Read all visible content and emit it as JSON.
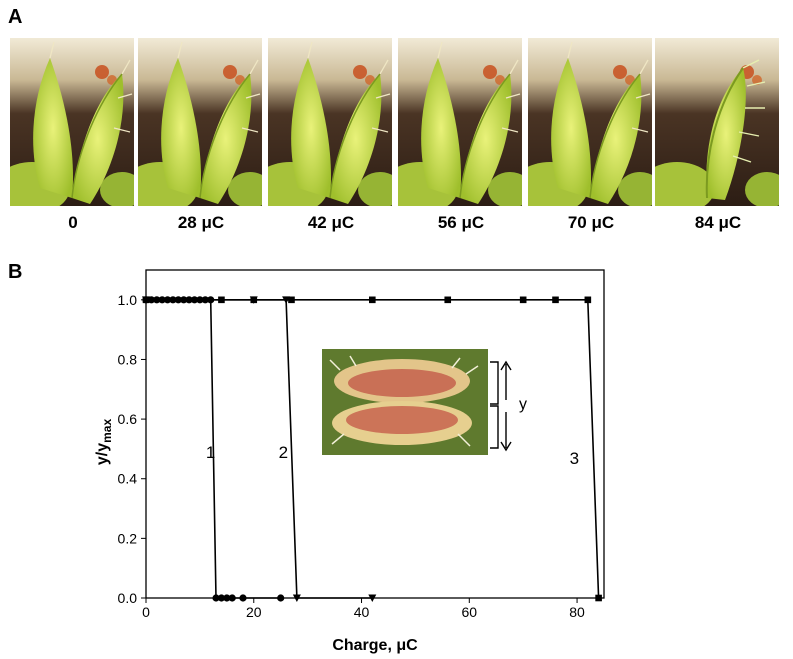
{
  "panel_labels": {
    "a": "A",
    "b": "B"
  },
  "photo_strip": {
    "labels": [
      "0",
      "28 μC",
      "42 μC",
      "56 μC",
      "70 μC",
      "84 μC"
    ]
  },
  "inset": {
    "label": "y"
  },
  "chart_data": {
    "type": "line",
    "xlabel": "Charge, μC",
    "ylabel": "y/y",
    "ylabel_subscript": "max",
    "xlim": [
      0,
      85
    ],
    "ylim": [
      0,
      1.1
    ],
    "xticks": [
      0,
      20,
      40,
      60,
      80
    ],
    "yticks": [
      0.0,
      0.2,
      0.4,
      0.6,
      0.8,
      1.0
    ],
    "xtick_labels": [
      "0",
      "20",
      "40",
      "60",
      "80"
    ],
    "ytick_labels": [
      "0.0",
      "0.2",
      "0.4",
      "0.6",
      "0.8",
      "1.0"
    ],
    "grid": false,
    "annotations": [
      "1",
      "2",
      "3"
    ],
    "series": [
      {
        "marker": "circle",
        "x": [
          0,
          1,
          2,
          3,
          4,
          5,
          6,
          7,
          8,
          9,
          10,
          11,
          12,
          13,
          14,
          15,
          16,
          18,
          25
        ],
        "y": [
          1,
          1,
          1,
          1,
          1,
          1,
          1,
          1,
          1,
          1,
          1,
          1,
          1,
          0,
          0,
          0,
          0,
          0,
          0
        ]
      },
      {
        "marker": "triangle-down",
        "x": [
          0,
          20,
          26,
          28,
          42
        ],
        "y": [
          1,
          1,
          1,
          0,
          0
        ]
      },
      {
        "marker": "square",
        "x": [
          0,
          14,
          20,
          27,
          42,
          56,
          70,
          76,
          82,
          84
        ],
        "y": [
          1,
          1,
          1,
          1,
          1,
          1,
          1,
          1,
          1,
          0
        ]
      }
    ]
  }
}
